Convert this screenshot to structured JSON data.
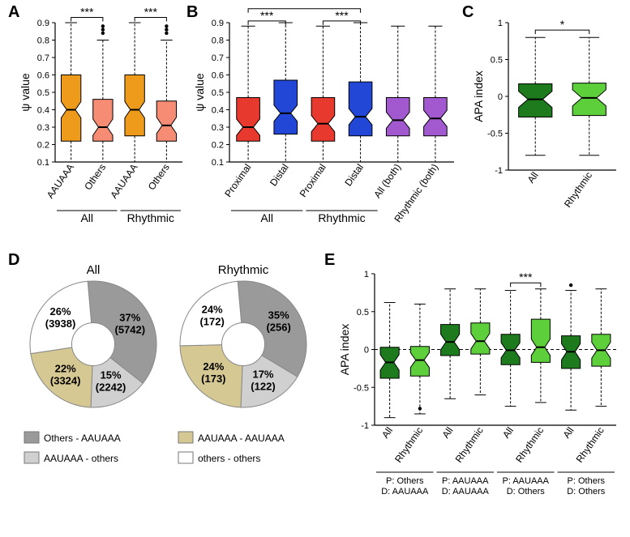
{
  "panels": {
    "A": {
      "label": "A"
    },
    "B": {
      "label": "B"
    },
    "C": {
      "label": "C"
    },
    "D": {
      "label": "D"
    },
    "E": {
      "label": "E"
    }
  },
  "colors": {
    "orange": "#ee9a1a",
    "salmon": "#f58c73",
    "red": "#e8392e",
    "blue": "#2246d6",
    "purple": "#a259cf",
    "dgreen": "#1d7a1d",
    "lgreen": "#5ccf3a",
    "gray_dark": "#9a9a9a",
    "gray_light": "#d0d0d0",
    "tan": "#d6c892",
    "white": "#ffffff",
    "axis": "#000000",
    "text": "#000000",
    "bg": "#ffffff"
  },
  "A": {
    "ylabel": "ψ value",
    "ylim": [
      0.1,
      0.9
    ],
    "yticks": [
      0.1,
      0.2,
      0.3,
      0.4,
      0.5,
      0.6,
      0.7,
      0.8,
      0.9
    ],
    "groups": [
      "All",
      "Rhythmic"
    ],
    "cats": [
      "AAUAAA",
      "Others"
    ],
    "boxes": [
      {
        "fill": "orange",
        "q1": 0.22,
        "med": 0.4,
        "q3": 0.6,
        "wl": 0.1,
        "wh": 0.9,
        "outliers": []
      },
      {
        "fill": "salmon",
        "q1": 0.22,
        "med": 0.3,
        "q3": 0.46,
        "wl": 0.1,
        "wh": 0.8,
        "outliers": [
          0.84,
          0.86,
          0.88
        ]
      },
      {
        "fill": "orange",
        "q1": 0.25,
        "med": 0.4,
        "q3": 0.6,
        "wl": 0.1,
        "wh": 0.9,
        "outliers": []
      },
      {
        "fill": "salmon",
        "q1": 0.22,
        "med": 0.31,
        "q3": 0.45,
        "wl": 0.1,
        "wh": 0.8,
        "outliers": [
          0.84,
          0.86,
          0.88
        ]
      }
    ],
    "sig": [
      {
        "i": 0,
        "j": 1,
        "y": 0.93,
        "label": "***"
      },
      {
        "i": 2,
        "j": 3,
        "y": 0.93,
        "label": "***"
      }
    ]
  },
  "B": {
    "ylabel": "ψ value",
    "ylim": [
      0.1,
      0.9
    ],
    "yticks": [
      0.1,
      0.2,
      0.3,
      0.4,
      0.5,
      0.6,
      0.7,
      0.8,
      0.9
    ],
    "groups": [
      "All",
      "Rhythmic",
      ""
    ],
    "cats": [
      "Proximal",
      "Distal",
      "Proximal",
      "Distal",
      "All (both)",
      "Rhythmic (both)"
    ],
    "boxes": [
      {
        "fill": "red",
        "q1": 0.22,
        "med": 0.3,
        "q3": 0.47,
        "wl": 0.1,
        "wh": 0.88,
        "outliers": []
      },
      {
        "fill": "blue",
        "q1": 0.26,
        "med": 0.38,
        "q3": 0.57,
        "wl": 0.1,
        "wh": 0.9,
        "outliers": []
      },
      {
        "fill": "red",
        "q1": 0.22,
        "med": 0.32,
        "q3": 0.47,
        "wl": 0.1,
        "wh": 0.88,
        "outliers": []
      },
      {
        "fill": "blue",
        "q1": 0.25,
        "med": 0.36,
        "q3": 0.56,
        "wl": 0.1,
        "wh": 0.9,
        "outliers": []
      },
      {
        "fill": "purple",
        "q1": 0.25,
        "med": 0.34,
        "q3": 0.47,
        "wl": 0.1,
        "wh": 0.88,
        "outliers": []
      },
      {
        "fill": "purple",
        "q1": 0.25,
        "med": 0.35,
        "q3": 0.47,
        "wl": 0.1,
        "wh": 0.88,
        "outliers": []
      }
    ],
    "sig": [
      {
        "i": 0,
        "j": 1,
        "y": 0.91,
        "label": "***"
      },
      {
        "i": 2,
        "j": 3,
        "y": 0.91,
        "label": "***"
      },
      {
        "i": 0,
        "j": 3,
        "y": 0.98,
        "label": "*"
      }
    ]
  },
  "C": {
    "ylabel": "APA index",
    "ylim": [
      -1.0,
      1.0
    ],
    "yticks": [
      -1.0,
      -0.5,
      0.0,
      0.5,
      1.0
    ],
    "cats": [
      "All",
      "Rhythmic"
    ],
    "boxes": [
      {
        "fill": "dgreen",
        "q1": -0.28,
        "med": -0.04,
        "q3": 0.17,
        "wl": -0.8,
        "wh": 0.8,
        "outliers": []
      },
      {
        "fill": "lgreen",
        "q1": -0.26,
        "med": -0.02,
        "q3": 0.18,
        "wl": -0.8,
        "wh": 0.8,
        "outliers": []
      }
    ],
    "sig": [
      {
        "i": 0,
        "j": 1,
        "y": 0.9,
        "label": "*"
      }
    ]
  },
  "D": {
    "title_all": "All",
    "title_rhy": "Rhythmic",
    "pies": {
      "all": [
        {
          "fill": "gray_dark",
          "pct": 37,
          "n": 5742
        },
        {
          "fill": "gray_light",
          "pct": 15,
          "n": 2242
        },
        {
          "fill": "tan",
          "pct": 22,
          "n": 3324
        },
        {
          "fill": "white",
          "pct": 26,
          "n": 3938
        }
      ],
      "rhy": [
        {
          "fill": "gray_dark",
          "pct": 35,
          "n": 256
        },
        {
          "fill": "gray_light",
          "pct": 17,
          "n": 122
        },
        {
          "fill": "tan",
          "pct": 24,
          "n": 173
        },
        {
          "fill": "white",
          "pct": 24,
          "n": 172
        }
      ]
    },
    "legend": [
      {
        "fill": "gray_dark",
        "label": "Others - AAUAAA"
      },
      {
        "fill": "gray_light",
        "label": "AAUAAA - others"
      },
      {
        "fill": "tan",
        "label": "AAUAAA - AAUAAA"
      },
      {
        "fill": "white",
        "label": "others - others"
      }
    ]
  },
  "E": {
    "ylabel": "APA index",
    "ylim": [
      -1.0,
      1.0
    ],
    "yticks": [
      -1.0,
      -0.5,
      0.0,
      0.5,
      1.0
    ],
    "pairs": [
      "All",
      "Rhythmic"
    ],
    "groups": [
      {
        "p": "Others",
        "d": "AAUAAA"
      },
      {
        "p": "AAUAAA",
        "d": "AAUAAA"
      },
      {
        "p": "AAUAAA",
        "d": "Others"
      },
      {
        "p": "Others",
        "d": "Others"
      }
    ],
    "boxes": [
      {
        "fill": "dgreen",
        "q1": -0.38,
        "med": -0.17,
        "q3": 0.03,
        "wl": -0.9,
        "wh": 0.62,
        "outliers": []
      },
      {
        "fill": "lgreen",
        "q1": -0.35,
        "med": -0.14,
        "q3": 0.04,
        "wl": -0.85,
        "wh": 0.6,
        "outliers": [
          -0.78
        ]
      },
      {
        "fill": "dgreen",
        "q1": -0.08,
        "med": 0.1,
        "q3": 0.33,
        "wl": -0.65,
        "wh": 0.8,
        "outliers": []
      },
      {
        "fill": "lgreen",
        "q1": -0.06,
        "med": 0.11,
        "q3": 0.35,
        "wl": -0.6,
        "wh": 0.8,
        "outliers": []
      },
      {
        "fill": "dgreen",
        "q1": -0.2,
        "med": -0.01,
        "q3": 0.2,
        "wl": -0.75,
        "wh": 0.78,
        "outliers": []
      },
      {
        "fill": "lgreen",
        "q1": -0.17,
        "med": 0.03,
        "q3": 0.4,
        "wl": -0.7,
        "wh": 0.8,
        "outliers": []
      },
      {
        "fill": "dgreen",
        "q1": -0.25,
        "med": -0.03,
        "q3": 0.18,
        "wl": -0.8,
        "wh": 0.78,
        "outliers": [
          0.85
        ]
      },
      {
        "fill": "lgreen",
        "q1": -0.22,
        "med": -0.01,
        "q3": 0.2,
        "wl": -0.75,
        "wh": 0.8,
        "outliers": []
      }
    ],
    "sig": [
      {
        "i": 4,
        "j": 5,
        "y": 0.88,
        "label": "***"
      }
    ]
  }
}
